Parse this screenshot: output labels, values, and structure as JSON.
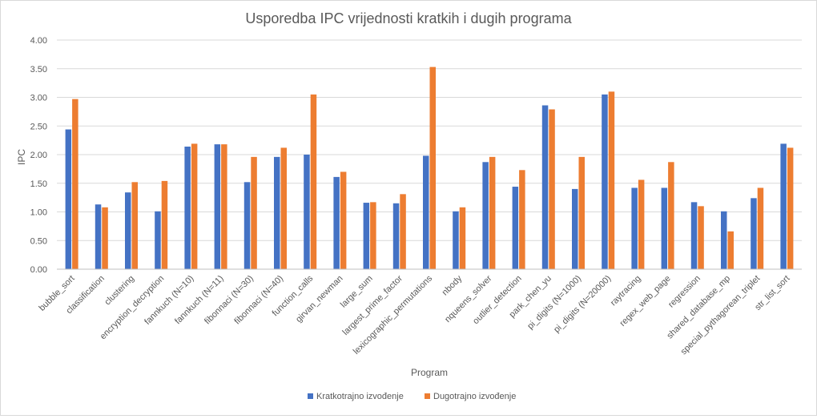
{
  "chart_data": {
    "type": "bar",
    "title": "Usporedba IPC vrijednosti kratkih i dugih programa",
    "xlabel": "Program",
    "ylabel": "IPC",
    "ylim": [
      0,
      4
    ],
    "yticks": [
      "0.00",
      "0.50",
      "1.00",
      "1.50",
      "2.00",
      "2.50",
      "3.00",
      "3.50",
      "4.00"
    ],
    "grid": true,
    "legend_position": "bottom",
    "categories": [
      "bubble_sort",
      "classification",
      "clustering",
      "encryption_decryption",
      "fannkuch (N=10)",
      "fannkuch (N=11)",
      "fibonnaci (N=30)",
      "fibonnaci (N=40)",
      "function_calls",
      "girvan_newman",
      "large_sum",
      "largest_prime_factor",
      "lexicographic_permutations",
      "nbody",
      "nqueens_solver",
      "outlier_detection",
      "park_chen_yu",
      "pi_digits (N=1000)",
      "pi_digits (N=20000)",
      "raytracing",
      "regex_web_page",
      "regression",
      "shared_database_mp",
      "special_pythagorean_triplet",
      "str_list_sort"
    ],
    "series": [
      {
        "name": "Kratkotrajno  izvođenje",
        "color": "#4472c4",
        "values": [
          2.44,
          1.13,
          1.34,
          1.01,
          2.14,
          2.18,
          1.52,
          1.96,
          2.0,
          1.61,
          1.16,
          1.15,
          1.98,
          1.01,
          1.87,
          1.44,
          2.86,
          1.4,
          3.05,
          1.42,
          1.42,
          1.17,
          1.01,
          1.24,
          2.19
        ]
      },
      {
        "name": "Dugotrajno izvođenje",
        "color": "#ed7d31",
        "values": [
          2.97,
          1.08,
          1.52,
          1.54,
          2.19,
          2.18,
          1.96,
          2.12,
          3.05,
          1.7,
          1.17,
          1.31,
          3.53,
          1.08,
          1.96,
          1.73,
          2.79,
          1.96,
          3.1,
          1.56,
          1.87,
          1.1,
          0.66,
          1.42,
          2.12
        ]
      }
    ]
  }
}
